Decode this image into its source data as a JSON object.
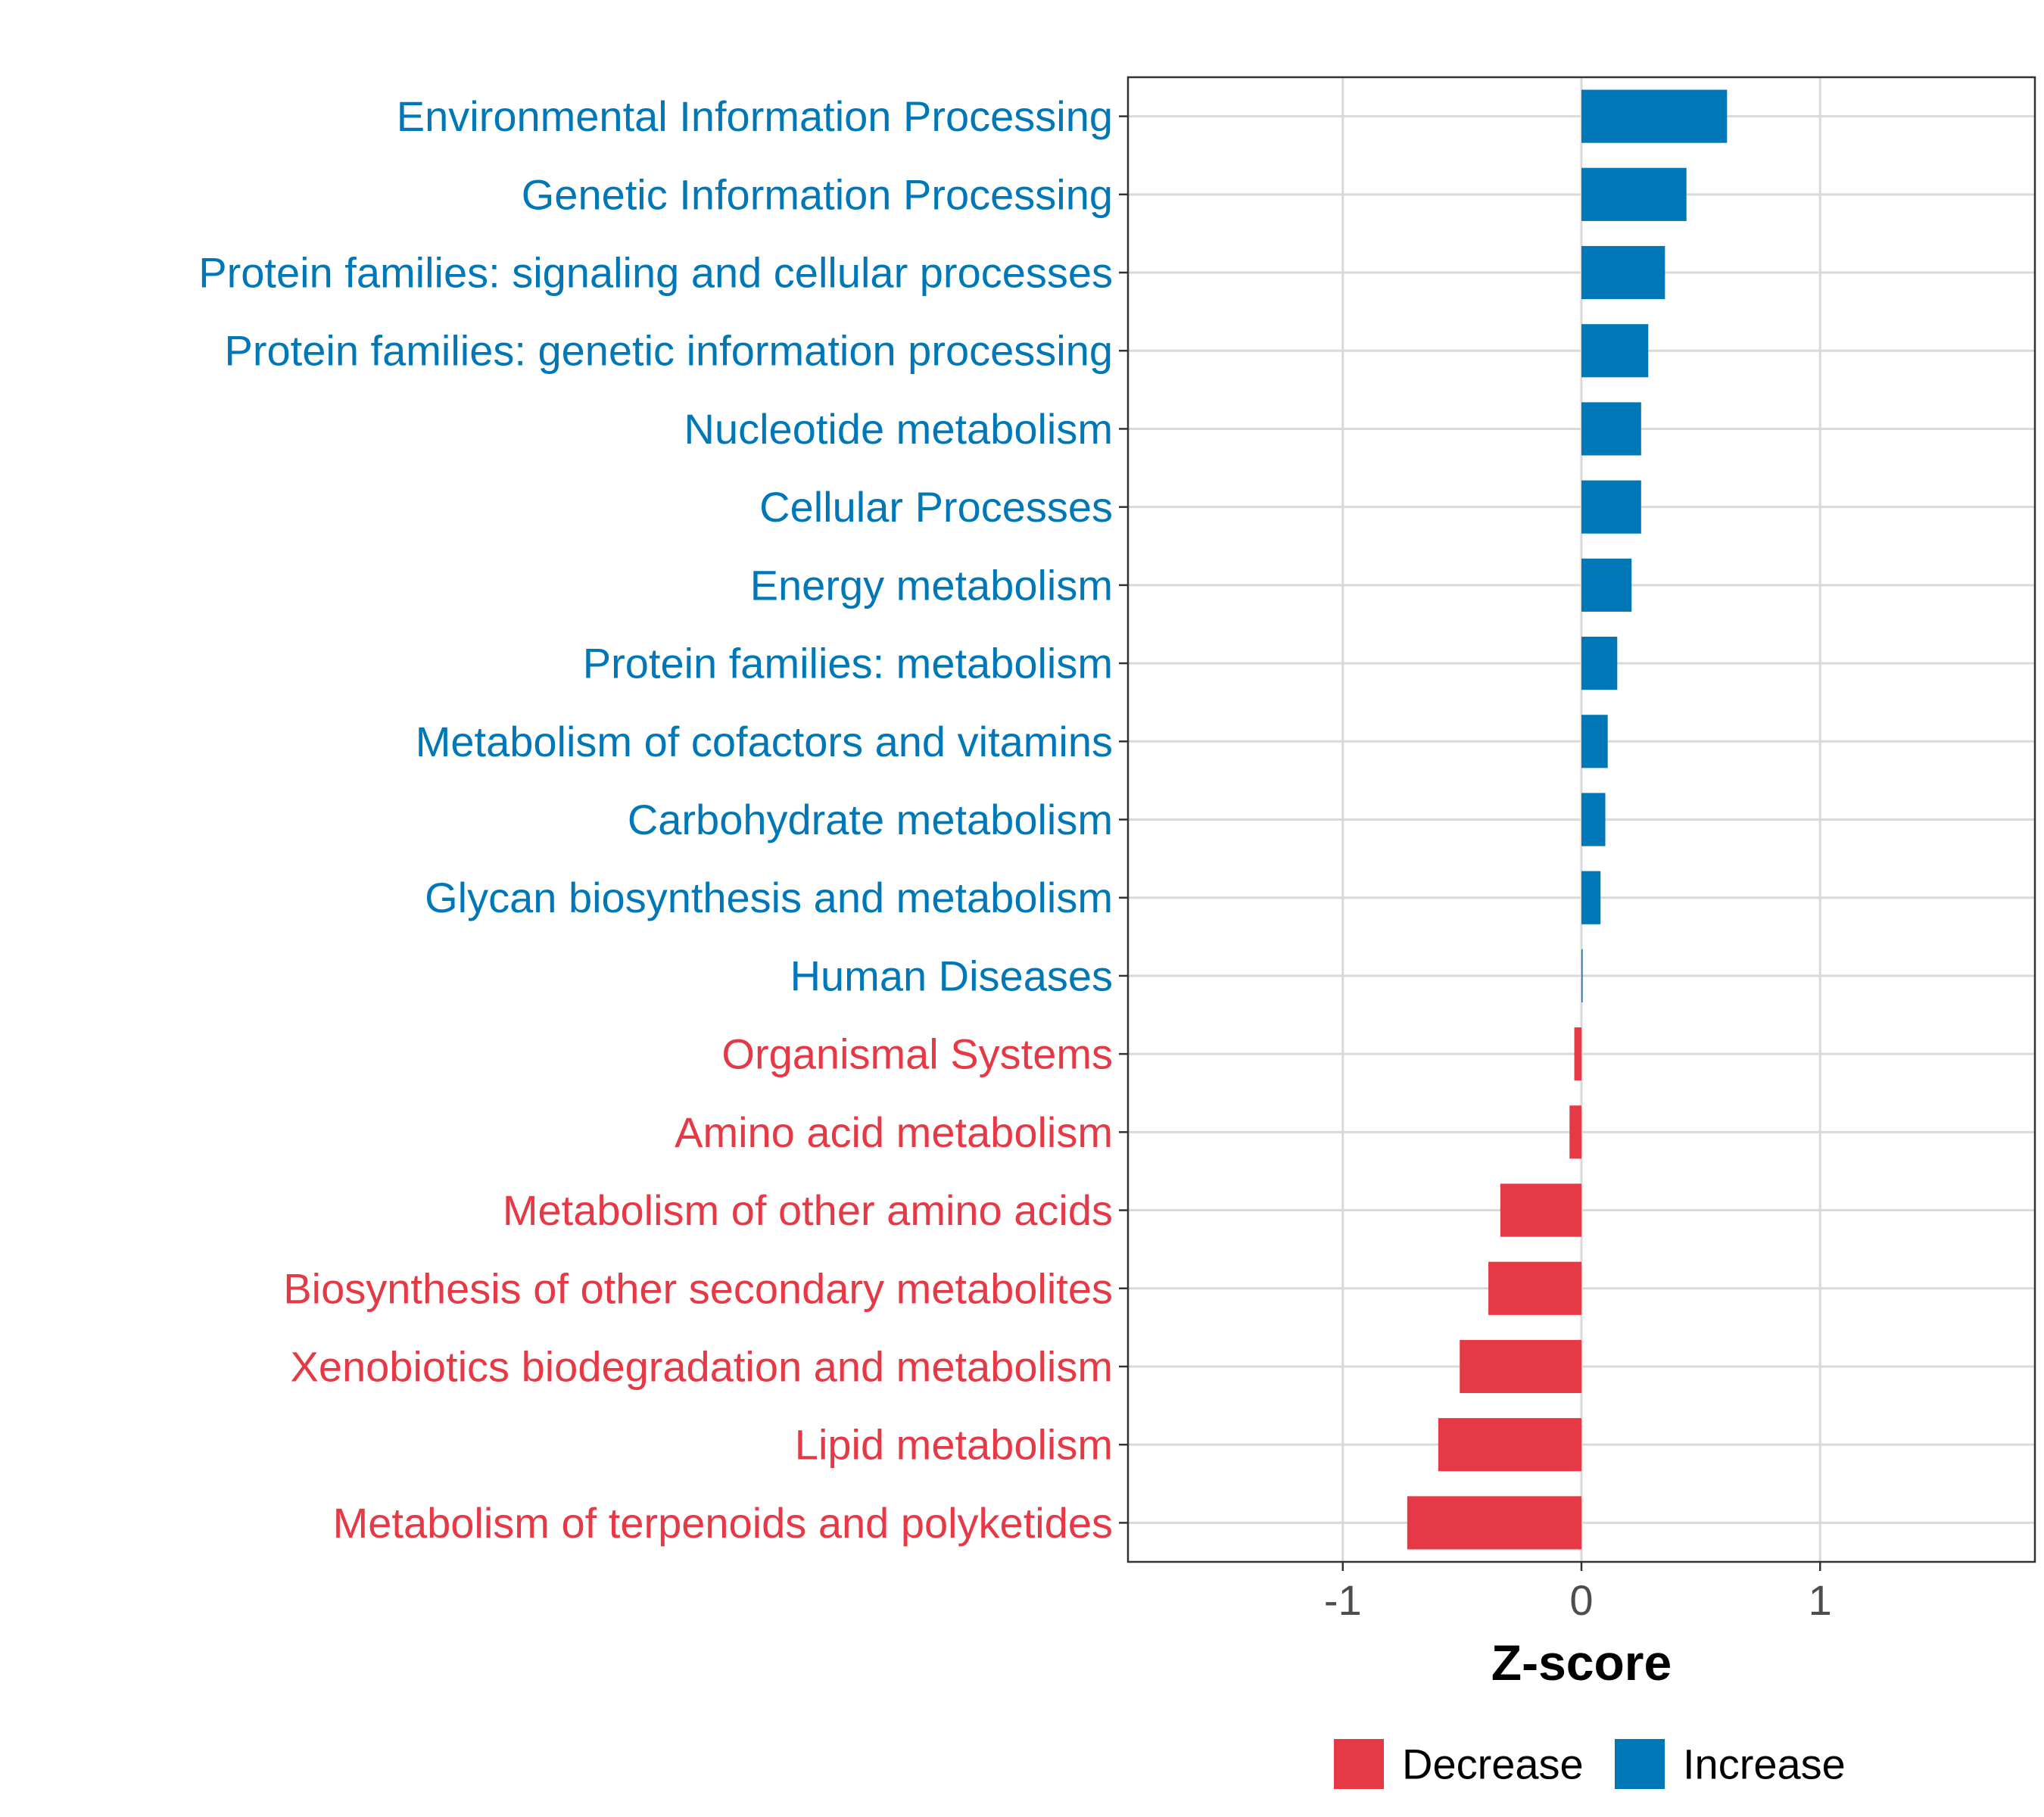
{
  "chart_data": {
    "type": "bar",
    "orientation": "horizontal",
    "xlabel": "Z-score",
    "ylabel": "",
    "xlim": [
      -1.9,
      1.9
    ],
    "xticks": [
      -1,
      0,
      1
    ],
    "xtick_labels": [
      "-1",
      "0",
      "1"
    ],
    "grid": true,
    "colors": {
      "Decrease": "#e63946",
      "Increase": "#0077b6"
    },
    "legend": {
      "position": "bottom",
      "entries": [
        {
          "label": "Decrease",
          "color": "#e63946"
        },
        {
          "label": "Increase",
          "color": "#0077b6"
        }
      ]
    },
    "categories": [
      "Environmental Information Processing",
      "Genetic Information Processing",
      "Protein families: signaling and cellular processes",
      "Protein families: genetic information processing",
      "Nucleotide metabolism",
      "Cellular Processes",
      "Energy metabolism",
      "Protein families: metabolism",
      "Metabolism of cofactors and vitamins",
      "Carbohydrate metabolism",
      "Glycan biosynthesis and metabolism",
      "Human Diseases",
      "Organismal Systems",
      "Amino acid metabolism",
      "Metabolism of other amino acids",
      "Biosynthesis of other secondary metabolites",
      "Xenobiotics biodegradation and metabolism",
      "Lipid metabolism",
      "Metabolism of terpenoids and polyketides"
    ],
    "values": [
      0.61,
      0.44,
      0.35,
      0.28,
      0.25,
      0.25,
      0.21,
      0.15,
      0.11,
      0.1,
      0.08,
      0.005,
      -0.03,
      -0.05,
      -0.34,
      -0.39,
      -0.51,
      -0.6,
      -0.73
    ],
    "groups": [
      "Increase",
      "Increase",
      "Increase",
      "Increase",
      "Increase",
      "Increase",
      "Increase",
      "Increase",
      "Increase",
      "Increase",
      "Increase",
      "Increase",
      "Decrease",
      "Decrease",
      "Decrease",
      "Decrease",
      "Decrease",
      "Decrease",
      "Decrease"
    ]
  }
}
